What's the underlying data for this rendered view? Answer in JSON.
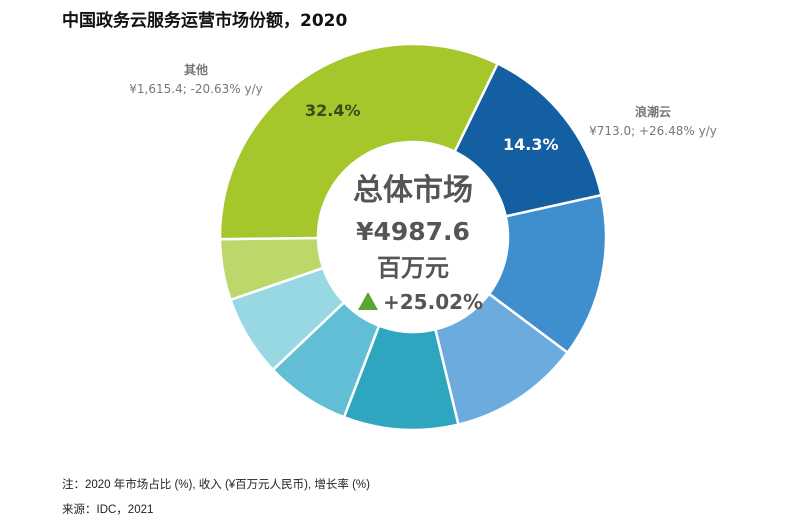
{
  "chart_data": {
    "type": "pie",
    "donut": true,
    "title": "中国政务云服务运营市场份额，2020",
    "start_angle_deg": 26,
    "slices": [
      {
        "label": "浪潮云",
        "value": 14.3,
        "data_label": "14.3%",
        "detail": "¥713.0; +26.48% y/y",
        "color": "#135fa1"
      },
      {
        "label": "",
        "value": 13.7,
        "color": "#3f8fcf"
      },
      {
        "label": "",
        "value": 11.0,
        "color": "#6cabdd"
      },
      {
        "label": "",
        "value": 9.6,
        "color": "#2fa6c0"
      },
      {
        "label": "",
        "value": 7.1,
        "color": "#62bed5"
      },
      {
        "label": "",
        "value": 6.8,
        "color": "#98d8e2"
      },
      {
        "label": "",
        "value": 5.1,
        "color": "#bcd86a"
      },
      {
        "label": "其他",
        "value": 32.4,
        "data_label": "32.4%",
        "detail": "¥1,615.4; -20.63% y/y",
        "color": "#a5c72b"
      }
    ],
    "center": {
      "line1": "总体市场",
      "line2": "¥4987.6",
      "line3": "百万元",
      "growth": "+25.02%",
      "growth_icon": "triangle-up-icon",
      "growth_color": "#5aa531"
    }
  },
  "footer": {
    "note": "注：2020 年市场占比 (%), 收入 (¥百万元人民币), 增长率 (%)",
    "source": "来源：IDC，2021"
  }
}
